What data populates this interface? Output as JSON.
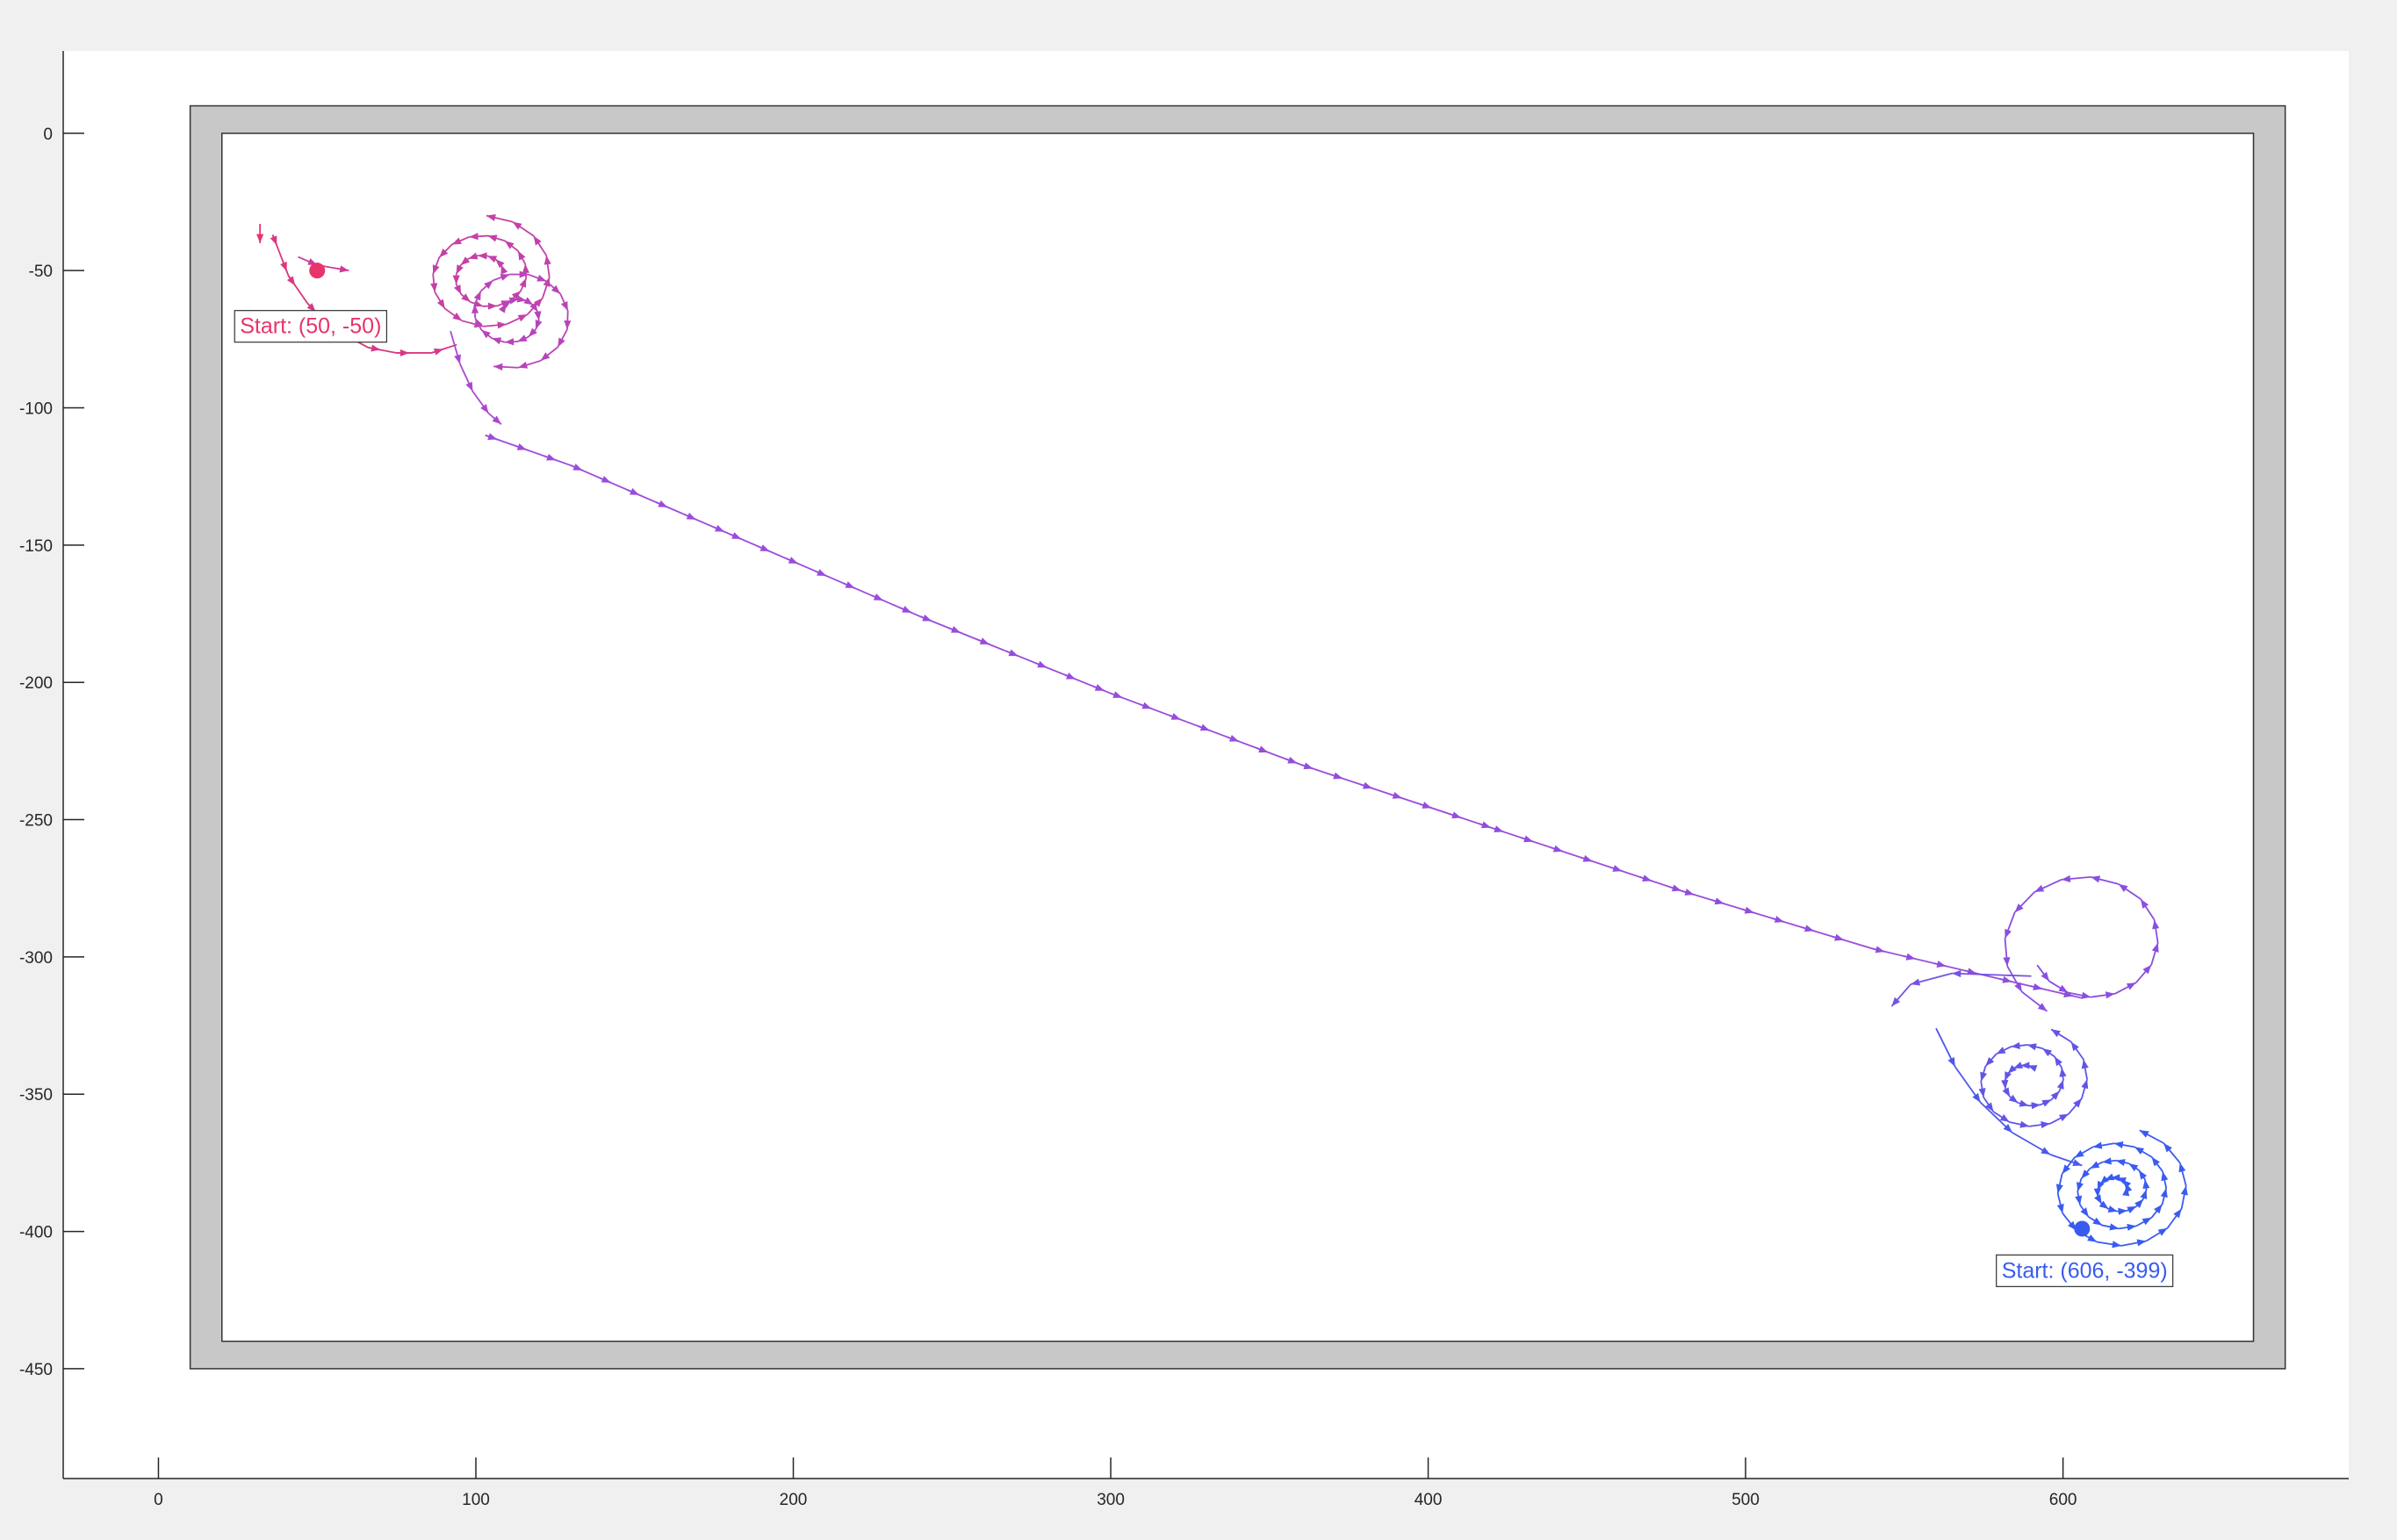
{
  "chart_data": {
    "type": "quiver",
    "title": "",
    "xlabel": "",
    "ylabel": "",
    "xlim": [
      -30,
      690
    ],
    "ylim": [
      -490,
      30
    ],
    "xticks": [
      0,
      100,
      200,
      300,
      400,
      500,
      600
    ],
    "yticks": [
      0,
      -50,
      -100,
      -150,
      -200,
      -250,
      -300,
      -350,
      -400,
      -450
    ],
    "grid": false,
    "arena": {
      "outer": [
        10,
        -450,
        670,
        10
      ],
      "inner": [
        20,
        -440,
        660,
        0
      ],
      "fill_color": "#c8c8c8"
    },
    "colors": {
      "start_a": "#e8336b",
      "mid": "#a64ad8",
      "start_b": "#3a5bf0"
    },
    "agents": [
      {
        "start": [
          50,
          -50
        ],
        "label": "Start: (50, -50)",
        "label_pos": [
          24,
          -70
        ],
        "color": "#e8336b"
      },
      {
        "start": [
          606,
          -399
        ],
        "label": "Start: (606, -399)",
        "label_pos": [
          579,
          -414
        ],
        "color": "#3a5bf0"
      }
    ],
    "trajectory": {
      "segments": [
        {
          "kind": "line",
          "points": [
            [
              32,
              -33
            ],
            [
              32,
              -40
            ]
          ]
        },
        {
          "kind": "line",
          "points": [
            [
              36,
              -37
            ],
            [
              41,
              -52
            ],
            [
              47,
              -62
            ],
            [
              52,
              -68
            ],
            [
              58,
              -73
            ],
            [
              66,
              -78
            ],
            [
              75,
              -80
            ],
            [
              86,
              -80
            ],
            [
              94,
              -77
            ]
          ]
        },
        {
          "kind": "line",
          "points": [
            [
              44,
              -45
            ],
            [
              50,
              -48
            ],
            [
              60,
              -50
            ]
          ]
        },
        {
          "kind": "spiral",
          "center": [
            103,
            -52
          ],
          "r0": 6,
          "r1": 22,
          "turns": 2.2,
          "theta0": 0.3,
          "dir": 1
        },
        {
          "kind": "spiral",
          "center": [
            112,
            -66
          ],
          "r0": 4,
          "r1": 20,
          "turns": 1.7,
          "theta0": 2.5,
          "dir": -1
        },
        {
          "kind": "line",
          "points": [
            [
              92,
              -72
            ],
            [
              95,
              -84
            ],
            [
              99,
              -94
            ],
            [
              104,
              -102
            ],
            [
              108,
              -106
            ]
          ]
        },
        {
          "kind": "line",
          "points": [
            [
              103,
              -110
            ],
            [
              130,
              -121
            ],
            [
              180,
              -146
            ],
            [
              240,
              -176
            ],
            [
              300,
              -204
            ],
            [
              360,
              -230
            ],
            [
              420,
              -253
            ],
            [
              480,
              -276
            ],
            [
              540,
              -297
            ],
            [
              580,
              -308
            ],
            [
              606,
              -315
            ]
          ]
        },
        {
          "kind": "spiral",
          "center": [
            608,
            -295
          ],
          "r0": 18,
          "r1": 28,
          "turns": 1.1,
          "theta0": 3.6,
          "dir": 1
        },
        {
          "kind": "line",
          "points": [
            [
              590,
              -307
            ],
            [
              565,
              -306
            ],
            [
              552,
              -310
            ],
            [
              546,
              -318
            ]
          ]
        },
        {
          "kind": "spiral",
          "center": [
            589,
            -345
          ],
          "r0": 5,
          "r1": 20,
          "turns": 2.0,
          "theta0": 1.2,
          "dir": 1
        },
        {
          "kind": "line",
          "points": [
            [
              560,
              -326
            ],
            [
              566,
              -340
            ],
            [
              574,
              -353
            ],
            [
              584,
              -364
            ],
            [
              596,
              -372
            ],
            [
              606,
              -376
            ]
          ]
        },
        {
          "kind": "spiral",
          "center": [
            617,
            -385
          ],
          "r0": 3,
          "r1": 23,
          "turns": 3.2,
          "theta0": 0.0,
          "dir": 1
        }
      ]
    }
  }
}
